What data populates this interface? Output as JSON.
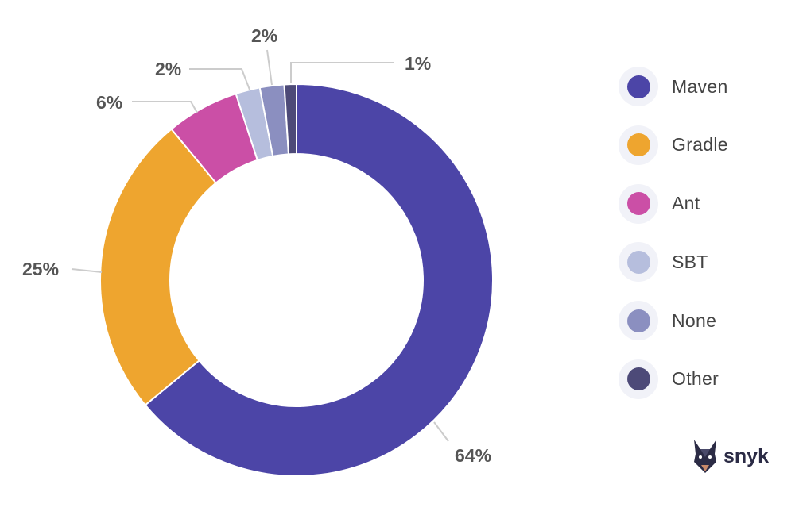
{
  "chart_data": {
    "type": "pie",
    "variant": "donut",
    "title": "",
    "categories": [
      "Maven",
      "Gradle",
      "Ant",
      "SBT",
      "None",
      "Other"
    ],
    "values": [
      64,
      25,
      6,
      2,
      2,
      1
    ],
    "labels": [
      "64%",
      "25%",
      "6%",
      "2%",
      "2%",
      "1%"
    ],
    "colors": [
      "#4c45a7",
      "#eea52f",
      "#cb4fa6",
      "#b6bedd",
      "#8b8fc0",
      "#4d4a78"
    ],
    "legend_position": "right"
  },
  "brand": {
    "name": "snyk"
  }
}
